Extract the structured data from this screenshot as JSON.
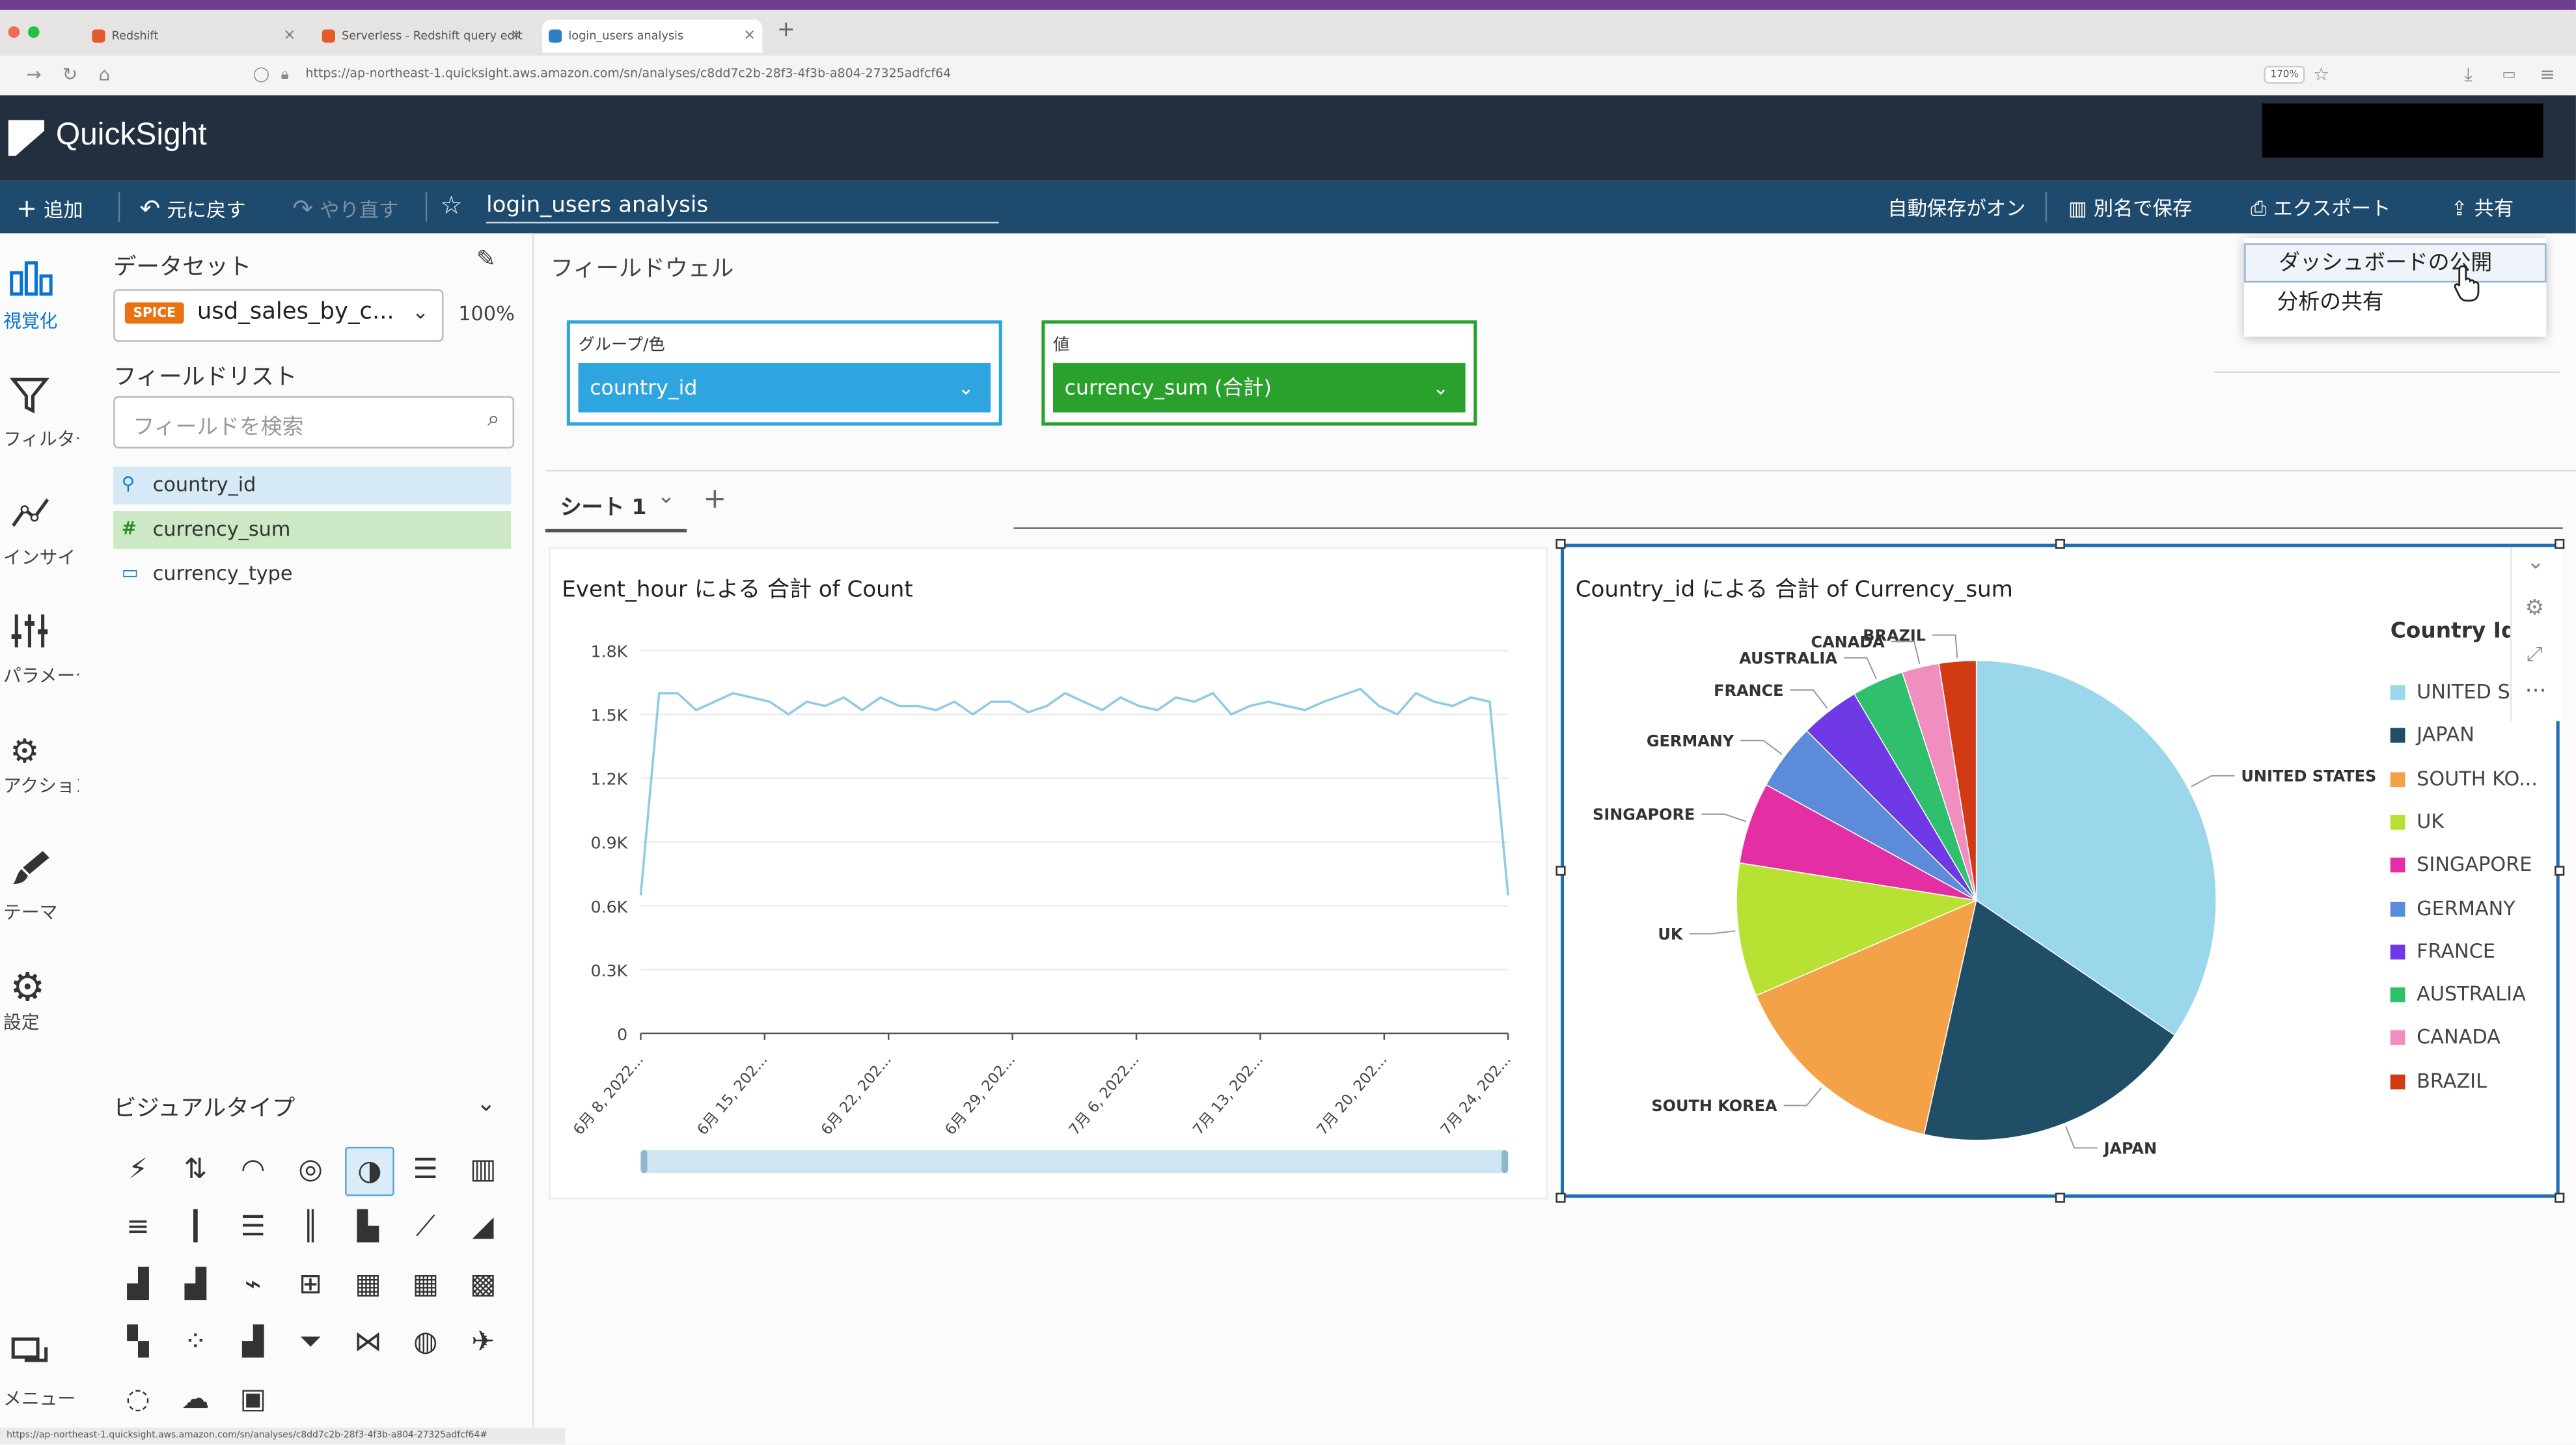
{
  "browser": {
    "tabs": [
      {
        "title": "Redshift",
        "fav_color": "#e35b2b"
      },
      {
        "title": "Serverless - Redshift query edit",
        "fav_color": "#e35b2b"
      },
      {
        "title": "login_users analysis",
        "fav_color": "#2f7fc6"
      }
    ],
    "url": "https://ap-northeast-1.quicksight.aws.amazon.com/sn/analyses/c8dd7c2b-28f3-4f3b-a804-27325adfcf64",
    "zoom": "170%",
    "status_url": "https://ap-northeast-1.quicksight.aws.amazon.com/sn/analyses/c8dd7c2b-28f3-4f3b-a804-27325adfcf64#"
  },
  "app": {
    "name": "QuickSight"
  },
  "toolbar": {
    "add": "追加",
    "undo": "元に戻す",
    "redo": "やり直す",
    "analysis_title": "login_users analysis",
    "autosave": "自動保存がオン",
    "save_as": "別名で保存",
    "export": "エクスポート",
    "share": "共有"
  },
  "share_menu": {
    "items": [
      "ダッシュボードの公開",
      "分析の共有"
    ]
  },
  "rail": {
    "items": [
      {
        "label": "視覚化",
        "icon": "visualize-icon"
      },
      {
        "label": "フィルター",
        "icon": "filter-icon"
      },
      {
        "label": "インサイト",
        "icon": "insights-icon"
      },
      {
        "label": "パラメータ",
        "icon": "parameters-icon"
      },
      {
        "label": "アクション",
        "icon": "actions-icon"
      },
      {
        "label": "テーマ",
        "icon": "themes-icon"
      },
      {
        "label": "設定",
        "icon": "settings-icon"
      },
      {
        "label": "メニュー",
        "icon": "menu-icon"
      }
    ]
  },
  "dataset": {
    "heading": "データセット",
    "badge": "SPICE",
    "name": "usd_sales_by_c...",
    "percent": "100%"
  },
  "fields": {
    "heading": "フィールドリスト",
    "search_placeholder": "フィールドを検索",
    "items": [
      {
        "name": "country_id",
        "type": "geo"
      },
      {
        "name": "currency_sum",
        "type": "measure"
      },
      {
        "name": "currency_type",
        "type": "dimension"
      }
    ]
  },
  "visual_types": {
    "heading": "ビジュアルタイプ"
  },
  "field_wells": {
    "heading": "フィールドウェル",
    "group": {
      "label": "グループ/色",
      "value": "country_id"
    },
    "value": {
      "label": "値",
      "value": "currency_sum (合計)"
    }
  },
  "sheets": {
    "tabs": [
      "シート 1"
    ]
  },
  "line_visual": {
    "title": "Event_hour による 合計 of Count"
  },
  "pie_visual": {
    "title": "Country_id による 合計 of Currency_sum",
    "legend_title": "Country Id"
  },
  "chart_data": [
    {
      "type": "line",
      "title": "Event_hour による 合計 of Count",
      "x_ticks": [
        "6月 8, 2022...",
        "6月 15, 202...",
        "6月 22, 202...",
        "6月 29, 202...",
        "7月 6, 2022...",
        "7月 13, 202...",
        "7月 20, 202...",
        "7月 24, 202..."
      ],
      "y_ticks": [
        "0",
        "0.3K",
        "0.6K",
        "0.9K",
        "1.2K",
        "1.5K",
        "1.8K"
      ],
      "ylim": [
        0,
        1800
      ],
      "x": [
        "2022-06-08",
        "2022-06-09",
        "2022-06-10",
        "2022-06-11",
        "2022-06-12",
        "2022-06-13",
        "2022-06-14",
        "2022-06-15",
        "2022-06-16",
        "2022-06-17",
        "2022-06-18",
        "2022-06-19",
        "2022-06-20",
        "2022-06-21",
        "2022-06-22",
        "2022-06-23",
        "2022-06-24",
        "2022-06-25",
        "2022-06-26",
        "2022-06-27",
        "2022-06-28",
        "2022-06-29",
        "2022-06-30",
        "2022-07-01",
        "2022-07-02",
        "2022-07-03",
        "2022-07-04",
        "2022-07-05",
        "2022-07-06",
        "2022-07-07",
        "2022-07-08",
        "2022-07-09",
        "2022-07-10",
        "2022-07-11",
        "2022-07-12",
        "2022-07-13",
        "2022-07-14",
        "2022-07-15",
        "2022-07-16",
        "2022-07-17",
        "2022-07-18",
        "2022-07-19",
        "2022-07-20",
        "2022-07-21",
        "2022-07-22",
        "2022-07-23",
        "2022-07-24",
        "2022-07-25"
      ],
      "values": [
        650,
        1600,
        1600,
        1520,
        1560,
        1600,
        1580,
        1560,
        1500,
        1560,
        1540,
        1580,
        1520,
        1580,
        1540,
        1540,
        1520,
        1560,
        1500,
        1560,
        1560,
        1510,
        1540,
        1600,
        1560,
        1520,
        1580,
        1540,
        1520,
        1580,
        1560,
        1600,
        1500,
        1540,
        1560,
        1540,
        1520,
        1560,
        1590,
        1620,
        1540,
        1500,
        1600,
        1560,
        1540,
        1580,
        1560,
        650
      ],
      "grid": true
    },
    {
      "type": "pie",
      "title": "Country_id による 合計 of Currency_sum",
      "legend_title": "Country Id",
      "legend_position": "right",
      "slices": [
        {
          "label": "UNITED STATES",
          "legend": "UNITED ST...",
          "value": 34.5,
          "color": "#9bd7ea"
        },
        {
          "label": "JAPAN",
          "legend": "JAPAN",
          "value": 19.0,
          "color": "#1f4e66"
        },
        {
          "label": "SOUTH KOREA",
          "legend": "SOUTH KO...",
          "value": 15.0,
          "color": "#f4a247"
        },
        {
          "label": "UK",
          "legend": "UK",
          "value": 9.0,
          "color": "#b7e233"
        },
        {
          "label": "SINGAPORE",
          "legend": "SINGAPORE",
          "value": 5.5,
          "color": "#e32fa3"
        },
        {
          "label": "GERMANY",
          "legend": "GERMANY",
          "value": 4.5,
          "color": "#5b8bd9"
        },
        {
          "label": "FRANCE",
          "legend": "FRANCE",
          "value": 4.0,
          "color": "#6f3ae6"
        },
        {
          "label": "AUSTRALIA",
          "legend": "AUSTRALIA",
          "value": 3.5,
          "color": "#2fbf6d"
        },
        {
          "label": "CANADA",
          "legend": "CANADA",
          "value": 2.5,
          "color": "#f08ec0"
        },
        {
          "label": "BRAZIL",
          "legend": "BRAZIL",
          "value": 2.5,
          "color": "#d23a13"
        }
      ]
    }
  ],
  "colors": {
    "appbar": "#232f3e",
    "toolbar": "#1e4a6e",
    "group_well": "#2ea5de",
    "value_well": "#2aa12c",
    "selection": "#1f6fb4"
  }
}
